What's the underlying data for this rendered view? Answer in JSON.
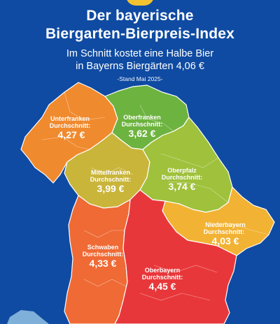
{
  "header": {
    "title_line1": "Der bayerische",
    "title_line2": "Biergarten-Bierpreis-Index",
    "subtitle_line1": "Im Schnitt kostet eine Halbe Bier",
    "subtitle_line2": "in Bayerns Biergärten 4,06 €",
    "stand": "-Stand Mai 2025-"
  },
  "regions": [
    {
      "name": "Unterfranken",
      "label": "Durchschnitt:",
      "price": "4,27 €",
      "color": "#f08a2e"
    },
    {
      "name": "Oberfranken",
      "label": "Durchschnitt:",
      "price": "3,62 €",
      "color": "#6db33f"
    },
    {
      "name": "Mittelfranken",
      "label": "Durchschnitt:",
      "price": "3,99 €",
      "color": "#c9b53a"
    },
    {
      "name": "Oberpfalz",
      "label": "Durchschnitt:",
      "price": "3,74 €",
      "color": "#9fc13c"
    },
    {
      "name": "Niederbayern",
      "label": "Durchschnitt:",
      "price": "4,03 €",
      "color": "#f2b233"
    },
    {
      "name": "Schwaben",
      "label": "Durchschnitt:",
      "price": "4,33 €",
      "color": "#ef6a35"
    },
    {
      "name": "Oberbayern",
      "label": "Durchschnitt:",
      "price": "4,45 €",
      "color": "#e8373a"
    }
  ],
  "colors": {
    "background": "#0f4ba2",
    "lake": "#7fb0d9",
    "logo": "#f2c230"
  }
}
